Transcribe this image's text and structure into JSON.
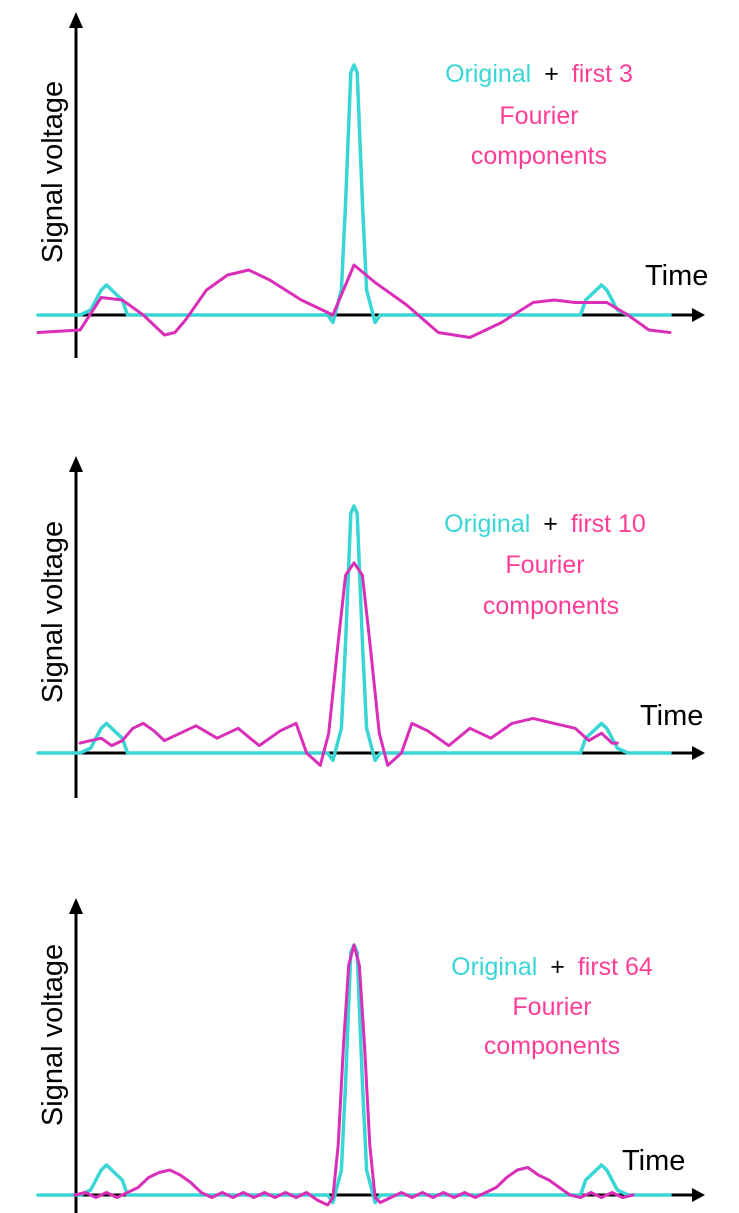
{
  "colors": {
    "original": "#3ad6d6",
    "approximation": "#d92fb8",
    "label_magenta": "#ff3d97",
    "axis": "#000000"
  },
  "chart_data": [
    {
      "type": "line",
      "ylabel": "Signal voltage",
      "xlabel": "Time",
      "legend": {
        "original": "Original",
        "plus": "+",
        "approx": "first 3",
        "line2": "Fourier",
        "line3": "components"
      },
      "series": [
        {
          "name": "Original",
          "color": "#3ad6d6",
          "values": [
            [
              -30,
              0
            ],
            [
              -26.5,
              0
            ],
            [
              -26,
              0
            ],
            [
              -25,
              0.02
            ],
            [
              -24.5,
              0.06
            ],
            [
              -24,
              0.1
            ],
            [
              -23.5,
              0.12
            ],
            [
              -23,
              0.1
            ],
            [
              -22,
              0.06
            ],
            [
              -21.5,
              0
            ],
            [
              -17,
              0
            ],
            [
              -2.5,
              0
            ],
            [
              -2,
              -0.03
            ],
            [
              -1.2,
              0.1
            ],
            [
              -0.8,
              0.45
            ],
            [
              -0.3,
              0.97
            ],
            [
              0,
              1
            ],
            [
              0.3,
              0.97
            ],
            [
              0.8,
              0.45
            ],
            [
              1.2,
              0.1
            ],
            [
              2,
              -0.03
            ],
            [
              2.5,
              0
            ],
            [
              17,
              0
            ],
            [
              21.5,
              0
            ],
            [
              22,
              0.06
            ],
            [
              23,
              0.1
            ],
            [
              23.5,
              0.12
            ],
            [
              24,
              0.1
            ],
            [
              24.5,
              0.06
            ],
            [
              25,
              0.02
            ],
            [
              26,
              0
            ],
            [
              30,
              0
            ]
          ]
        },
        {
          "name": "first 3",
          "color": "#d92fb8",
          "values": [
            [
              -30,
              -0.07
            ],
            [
              -26,
              -0.06
            ],
            [
              -24,
              0.07
            ],
            [
              -22,
              0.06
            ],
            [
              -20,
              0
            ],
            [
              -18,
              -0.08
            ],
            [
              -17,
              -0.07
            ],
            [
              -16,
              -0.02
            ],
            [
              -14,
              0.1
            ],
            [
              -12,
              0.16
            ],
            [
              -10,
              0.18
            ],
            [
              -8,
              0.14
            ],
            [
              -5,
              0.06
            ],
            [
              -2,
              0
            ],
            [
              0,
              0.2
            ],
            [
              2,
              0.13
            ],
            [
              5,
              0.04
            ],
            [
              8,
              -0.07
            ],
            [
              11,
              -0.09
            ],
            [
              14,
              -0.03
            ],
            [
              17,
              0.05
            ],
            [
              19,
              0.06
            ],
            [
              21,
              0.05
            ],
            [
              24,
              0.05
            ],
            [
              26,
              0
            ],
            [
              28,
              -0.06
            ],
            [
              30,
              -0.07
            ]
          ]
        }
      ]
    },
    {
      "type": "line",
      "ylabel": "Signal voltage",
      "xlabel": "Time",
      "legend": {
        "original": "Original",
        "plus": "+",
        "approx": "first 10",
        "line2": "Fourier",
        "line3": "components"
      },
      "series": [
        {
          "name": "Original",
          "color": "#3ad6d6",
          "values": [
            [
              -30,
              0
            ],
            [
              -26.5,
              0
            ],
            [
              -26,
              0
            ],
            [
              -25,
              0.02
            ],
            [
              -24.5,
              0.06
            ],
            [
              -24,
              0.1
            ],
            [
              -23.5,
              0.12
            ],
            [
              -23,
              0.1
            ],
            [
              -22,
              0.06
            ],
            [
              -21.5,
              0
            ],
            [
              -17,
              0
            ],
            [
              -2.5,
              0
            ],
            [
              -2,
              -0.03
            ],
            [
              -1.2,
              0.1
            ],
            [
              -0.8,
              0.45
            ],
            [
              -0.3,
              0.97
            ],
            [
              0,
              1
            ],
            [
              0.3,
              0.97
            ],
            [
              0.8,
              0.45
            ],
            [
              1.2,
              0.1
            ],
            [
              2,
              -0.03
            ],
            [
              2.5,
              0
            ],
            [
              17,
              0
            ],
            [
              21.5,
              0
            ],
            [
              22,
              0.06
            ],
            [
              23,
              0.1
            ],
            [
              23.5,
              0.12
            ],
            [
              24,
              0.1
            ],
            [
              24.5,
              0.06
            ],
            [
              25,
              0.02
            ],
            [
              26,
              0
            ],
            [
              30,
              0
            ]
          ]
        },
        {
          "name": "first 10",
          "color": "#d92fb8",
          "values": [
            [
              -26,
              0.04
            ],
            [
              -25,
              0.05
            ],
            [
              -24,
              0.06
            ],
            [
              -23,
              0.03
            ],
            [
              -22,
              0.05
            ],
            [
              -21,
              0.1
            ],
            [
              -20,
              0.12
            ],
            [
              -19,
              0.09
            ],
            [
              -18,
              0.05
            ],
            [
              -17,
              0.07
            ],
            [
              -15,
              0.11
            ],
            [
              -13,
              0.06
            ],
            [
              -11,
              0.1
            ],
            [
              -9,
              0.03
            ],
            [
              -7,
              0.09
            ],
            [
              -5.5,
              0.12
            ],
            [
              -4.5,
              0
            ],
            [
              -3.2,
              -0.05
            ],
            [
              -2.4,
              0.08
            ],
            [
              -1.5,
              0.45
            ],
            [
              -0.8,
              0.72
            ],
            [
              0,
              0.77
            ],
            [
              0.8,
              0.72
            ],
            [
              1.5,
              0.45
            ],
            [
              2.4,
              0.08
            ],
            [
              3.2,
              -0.05
            ],
            [
              4.5,
              0
            ],
            [
              5.5,
              0.12
            ],
            [
              7,
              0.09
            ],
            [
              9,
              0.03
            ],
            [
              11,
              0.1
            ],
            [
              13,
              0.06
            ],
            [
              15,
              0.12
            ],
            [
              17,
              0.14
            ],
            [
              19,
              0.12
            ],
            [
              21,
              0.1
            ],
            [
              22.3,
              0.05
            ],
            [
              23.5,
              0.08
            ],
            [
              24.5,
              0.04
            ],
            [
              25,
              0.04
            ]
          ]
        }
      ]
    },
    {
      "type": "line",
      "ylabel": "Signal voltage",
      "xlabel": "Time",
      "legend": {
        "original": "Original",
        "plus": "+",
        "approx": "first 64",
        "line2": "Fourier",
        "line3": "components"
      },
      "series": [
        {
          "name": "Original",
          "color": "#3ad6d6",
          "values": [
            [
              -30,
              0
            ],
            [
              -26.5,
              0
            ],
            [
              -26,
              0
            ],
            [
              -25,
              0.02
            ],
            [
              -24.5,
              0.06
            ],
            [
              -24,
              0.1
            ],
            [
              -23.5,
              0.12
            ],
            [
              -23,
              0.1
            ],
            [
              -22,
              0.06
            ],
            [
              -21.5,
              0
            ],
            [
              -17,
              0
            ],
            [
              -2.5,
              0
            ],
            [
              -2,
              -0.03
            ],
            [
              -1.2,
              0.1
            ],
            [
              -0.8,
              0.45
            ],
            [
              -0.3,
              0.97
            ],
            [
              0,
              1
            ],
            [
              0.3,
              0.97
            ],
            [
              0.8,
              0.45
            ],
            [
              1.2,
              0.1
            ],
            [
              2,
              -0.03
            ],
            [
              2.5,
              0
            ],
            [
              17,
              0
            ],
            [
              21.5,
              0
            ],
            [
              22,
              0.06
            ],
            [
              23,
              0.1
            ],
            [
              23.5,
              0.12
            ],
            [
              24,
              0.1
            ],
            [
              24.5,
              0.06
            ],
            [
              25,
              0.02
            ],
            [
              26,
              0
            ],
            [
              30,
              0
            ]
          ]
        },
        {
          "name": "first 64",
          "color": "#d92fb8",
          "values": [
            [
              -26.5,
              0
            ],
            [
              -25.5,
              0.01
            ],
            [
              -24.5,
              -0.01
            ],
            [
              -23.5,
              0.01
            ],
            [
              -22.5,
              -0.01
            ],
            [
              -21.5,
              0.01
            ],
            [
              -20.5,
              0.03
            ],
            [
              -19.5,
              0.07
            ],
            [
              -18.5,
              0.09
            ],
            [
              -17.5,
              0.1
            ],
            [
              -16.5,
              0.08
            ],
            [
              -15.5,
              0.05
            ],
            [
              -14.5,
              0.01
            ],
            [
              -13.5,
              -0.01
            ],
            [
              -12.5,
              0.01
            ],
            [
              -11.5,
              -0.01
            ],
            [
              -10.5,
              0.01
            ],
            [
              -9.5,
              -0.01
            ],
            [
              -8.5,
              0.01
            ],
            [
              -7.5,
              -0.01
            ],
            [
              -6.5,
              0.01
            ],
            [
              -5.5,
              -0.01
            ],
            [
              -4.5,
              0.01
            ],
            [
              -3.5,
              -0.02
            ],
            [
              -2.5,
              -0.04
            ],
            [
              -2,
              -0.01
            ],
            [
              -1.5,
              0.2
            ],
            [
              -1,
              0.6
            ],
            [
              -0.5,
              0.92
            ],
            [
              0,
              1
            ],
            [
              0.5,
              0.92
            ],
            [
              1,
              0.6
            ],
            [
              1.5,
              0.2
            ],
            [
              2,
              -0.01
            ],
            [
              2.5,
              -0.03
            ],
            [
              3.5,
              -0.01
            ],
            [
              4.5,
              0.01
            ],
            [
              5.5,
              -0.01
            ],
            [
              6.5,
              0.01
            ],
            [
              7.5,
              -0.01
            ],
            [
              8.5,
              0.01
            ],
            [
              9.5,
              -0.01
            ],
            [
              10.5,
              0.01
            ],
            [
              11.5,
              -0.01
            ],
            [
              12.5,
              0.01
            ],
            [
              13.5,
              0.03
            ],
            [
              14.5,
              0.07
            ],
            [
              15.5,
              0.1
            ],
            [
              16.5,
              0.11
            ],
            [
              17.5,
              0.08
            ],
            [
              18.5,
              0.06
            ],
            [
              19.5,
              0.03
            ],
            [
              20.5,
              0
            ],
            [
              21.5,
              -0.01
            ],
            [
              22.5,
              0.01
            ],
            [
              23.5,
              -0.01
            ],
            [
              24.5,
              0.01
            ],
            [
              25.5,
              -0.01
            ],
            [
              26.5,
              0
            ]
          ]
        }
      ]
    }
  ]
}
